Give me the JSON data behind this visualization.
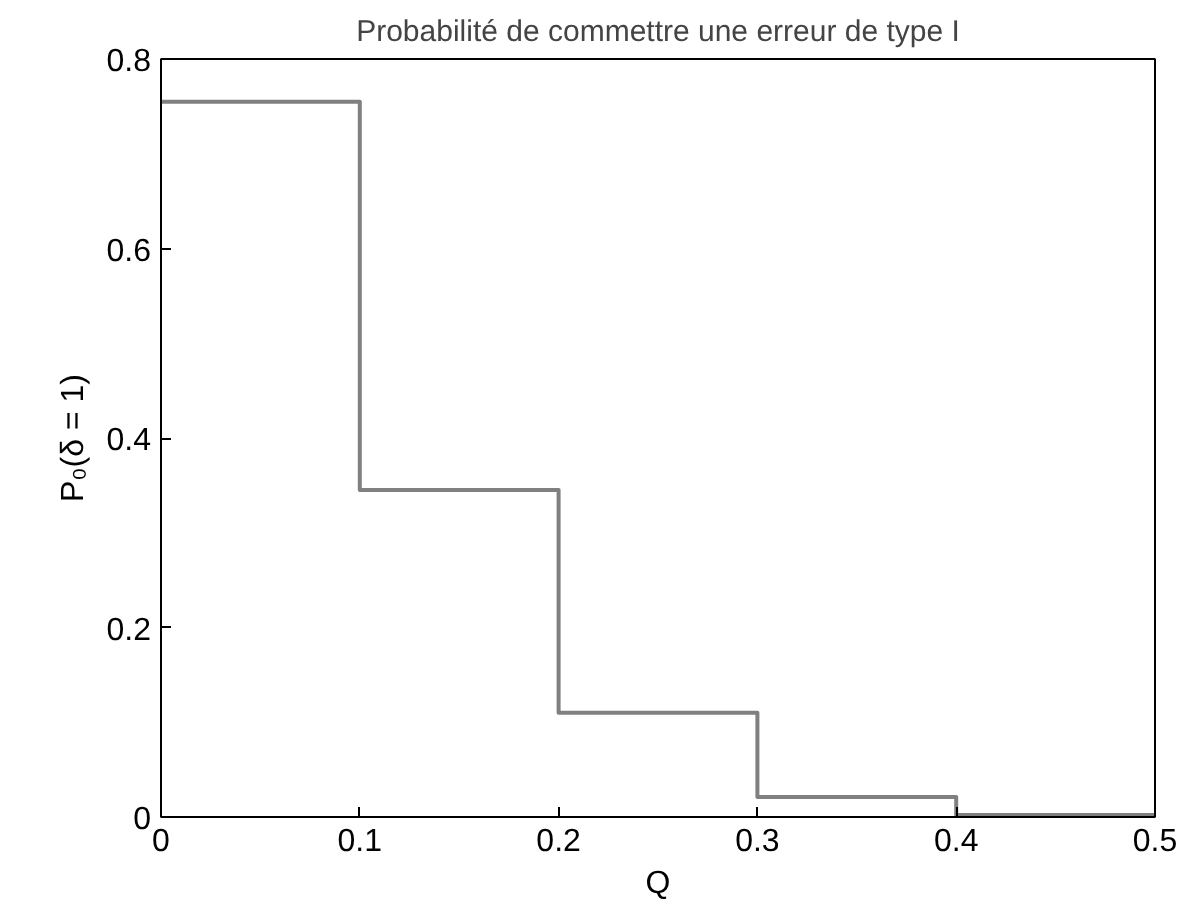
{
  "chart_data": {
    "type": "step",
    "title": "Probabilité de commettre une erreur de type I",
    "xlabel": "Q",
    "ylabel": "P₀(δ = 1)",
    "x": [
      0,
      0.1,
      0.2,
      0.3,
      0.4,
      0.5
    ],
    "series": [
      {
        "color": "#808080",
        "values": [
          0.755,
          0.345,
          0.11,
          0.021,
          0.002,
          0.002
        ]
      }
    ],
    "xlim": [
      0,
      0.5
    ],
    "ylim": [
      0,
      0.8
    ],
    "xticks": [
      0,
      0.1,
      0.2,
      0.3,
      0.4,
      0.5
    ],
    "yticks": [
      0,
      0.2,
      0.4,
      0.6,
      0.8
    ],
    "grid": false
  }
}
